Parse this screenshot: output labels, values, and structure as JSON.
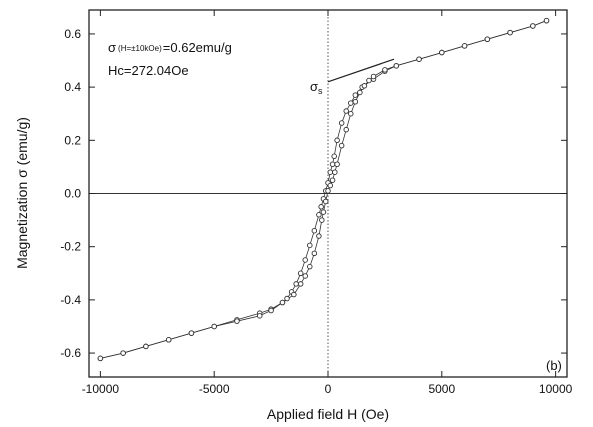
{
  "chart_data": {
    "type": "scatter",
    "xlabel": "Applied field H (Oe)",
    "ylabel": "Magnetization σ (emu/g)",
    "xlim": [
      -10500,
      10500
    ],
    "ylim": [
      -0.69,
      0.69
    ],
    "x_ticks": [
      -10000,
      -5000,
      0,
      5000,
      10000
    ],
    "x_tick_labels": [
      "-10000",
      "-5000",
      "0",
      "5000",
      "10000"
    ],
    "y_ticks": [
      -0.6,
      -0.4,
      -0.2,
      0.0,
      0.2,
      0.4,
      0.6
    ],
    "y_tick_labels": [
      "-0.6",
      "-0.4",
      "-0.2",
      "0.0",
      "0.2",
      "0.4",
      "0.6"
    ],
    "grid": false,
    "reference_lines": {
      "horizontal_y": 0,
      "vertical_x": 0
    },
    "series": [
      {
        "marker": "open-circle",
        "color": "#333333",
        "x": [
          -10000,
          -9000,
          -8000,
          -7000,
          -6000,
          -5000,
          -4000,
          -3000,
          -2500,
          -2000,
          -1800,
          -1600,
          -1400,
          -1200,
          -1000,
          -800,
          -600,
          -400,
          -300,
          -200,
          -100,
          0,
          100,
          200,
          272,
          400,
          600,
          800,
          1000,
          1200,
          1500,
          2000,
          2500,
          3000,
          4000,
          5000,
          6000,
          7000,
          8000,
          9000,
          9600
        ],
        "y": [
          -0.62,
          -0.6,
          -0.575,
          -0.55,
          -0.525,
          -0.5,
          -0.475,
          -0.45,
          -0.435,
          -0.41,
          -0.395,
          -0.37,
          -0.34,
          -0.3,
          -0.25,
          -0.195,
          -0.14,
          -0.08,
          -0.05,
          -0.02,
          0.01,
          0.04,
          0.08,
          0.11,
          0.14,
          0.2,
          0.265,
          0.31,
          0.34,
          0.37,
          0.4,
          0.43,
          0.46,
          0.48,
          0.505,
          0.53,
          0.555,
          0.58,
          0.605,
          0.63,
          0.65
        ]
      },
      {
        "marker": "open-circle",
        "color": "#333333",
        "x": [
          9600,
          9000,
          8000,
          7000,
          6000,
          5000,
          4000,
          3000,
          2500,
          2000,
          1800,
          1600,
          1400,
          1200,
          1000,
          800,
          600,
          400,
          300,
          200,
          100,
          0,
          -100,
          -200,
          -272,
          -400,
          -600,
          -800,
          -1000,
          -1200,
          -1500,
          -2000,
          -2500,
          -3000,
          -4000,
          -5000,
          -6000,
          -7000,
          -8000,
          -9000,
          -10000
        ],
        "y": [
          0.65,
          0.63,
          0.605,
          0.58,
          0.555,
          0.53,
          0.505,
          0.48,
          0.465,
          0.44,
          0.425,
          0.405,
          0.38,
          0.345,
          0.3,
          0.24,
          0.18,
          0.11,
          0.08,
          0.05,
          0.03,
          0.01,
          -0.03,
          -0.07,
          -0.1,
          -0.16,
          -0.225,
          -0.275,
          -0.31,
          -0.34,
          -0.38,
          -0.41,
          -0.44,
          -0.46,
          -0.48,
          -0.5,
          -0.525,
          -0.55,
          -0.575,
          -0.6,
          -0.62
        ]
      }
    ],
    "annotations": {
      "sigma_prefix": "σ",
      "condition": "(H=±10kOe)",
      "sigma_value": "=0.62emu/g",
      "hc": "Hc=272.04Oe",
      "sigma_s_symbol": "σ",
      "sigma_s_sub": "s",
      "sigma_s_line": {
        "x0": 0,
        "y0": 0.42,
        "x1": 2900,
        "y1": 0.505
      },
      "panel_label": "(b)"
    }
  }
}
